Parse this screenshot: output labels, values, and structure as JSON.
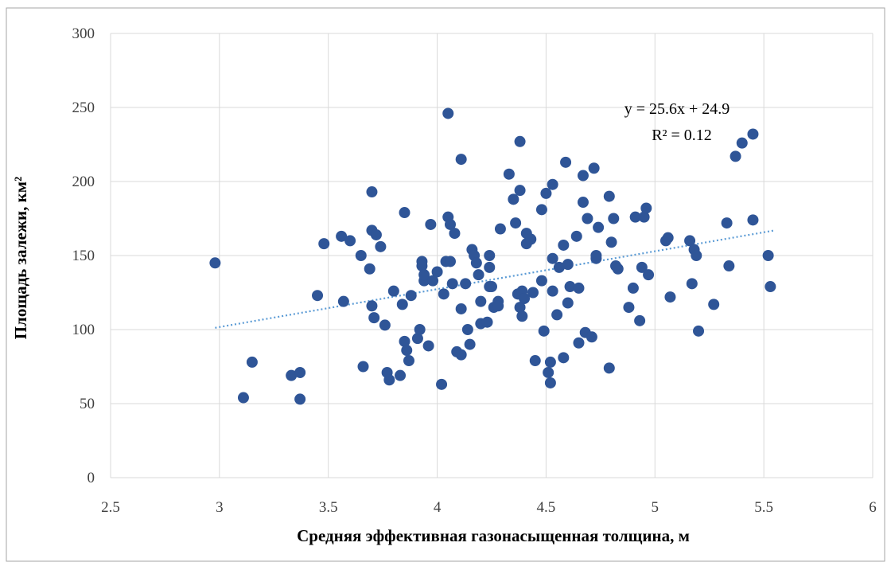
{
  "chart_data": {
    "type": "scatter",
    "title": "",
    "xlabel": "Средняя эффективная газонасыщенная толщина, м",
    "ylabel": "Площадь залежи, км²",
    "xlim": [
      2.5,
      6
    ],
    "ylim": [
      0,
      300
    ],
    "x_ticks": [
      "2.5",
      "3",
      "3.5",
      "4",
      "4.5",
      "5",
      "5.5",
      "6"
    ],
    "y_ticks": [
      "0",
      "50",
      "100",
      "150",
      "200",
      "250",
      "300"
    ],
    "grid": true,
    "legend": "none",
    "colors": {
      "marker": "#2F5597",
      "trendline": "#5B9BD5",
      "grid": "#D9D9D9",
      "frame": "#A6A6A6"
    },
    "annotations": {
      "equation": "y = 25.6x + 24.9",
      "r_squared": "R² = 0.12"
    },
    "trendline": {
      "slope": 25.6,
      "intercept": 24.9,
      "x_range": [
        2.98,
        5.55
      ]
    },
    "points": [
      {
        "x": 2.98,
        "y": 145
      },
      {
        "x": 3.11,
        "y": 54
      },
      {
        "x": 3.15,
        "y": 78
      },
      {
        "x": 3.33,
        "y": 69
      },
      {
        "x": 3.37,
        "y": 71
      },
      {
        "x": 3.37,
        "y": 53
      },
      {
        "x": 3.45,
        "y": 123
      },
      {
        "x": 3.48,
        "y": 158
      },
      {
        "x": 3.56,
        "y": 163
      },
      {
        "x": 3.57,
        "y": 119
      },
      {
        "x": 3.6,
        "y": 160
      },
      {
        "x": 3.65,
        "y": 150
      },
      {
        "x": 3.66,
        "y": 75
      },
      {
        "x": 3.69,
        "y": 141
      },
      {
        "x": 3.7,
        "y": 193
      },
      {
        "x": 3.7,
        "y": 167
      },
      {
        "x": 3.7,
        "y": 116
      },
      {
        "x": 3.71,
        "y": 108
      },
      {
        "x": 3.72,
        "y": 164
      },
      {
        "x": 3.74,
        "y": 156
      },
      {
        "x": 3.76,
        "y": 103
      },
      {
        "x": 3.77,
        "y": 71
      },
      {
        "x": 3.78,
        "y": 66
      },
      {
        "x": 3.8,
        "y": 126
      },
      {
        "x": 3.83,
        "y": 69
      },
      {
        "x": 3.84,
        "y": 117
      },
      {
        "x": 3.85,
        "y": 92
      },
      {
        "x": 3.85,
        "y": 179
      },
      {
        "x": 3.86,
        "y": 86
      },
      {
        "x": 3.87,
        "y": 79
      },
      {
        "x": 3.88,
        "y": 123
      },
      {
        "x": 3.91,
        "y": 94
      },
      {
        "x": 3.92,
        "y": 100
      },
      {
        "x": 3.93,
        "y": 146
      },
      {
        "x": 3.93,
        "y": 143
      },
      {
        "x": 3.94,
        "y": 133
      },
      {
        "x": 3.94,
        "y": 137
      },
      {
        "x": 3.96,
        "y": 89
      },
      {
        "x": 3.97,
        "y": 171
      },
      {
        "x": 3.98,
        "y": 133
      },
      {
        "x": 4.0,
        "y": 139
      },
      {
        "x": 4.02,
        "y": 63
      },
      {
        "x": 4.03,
        "y": 124
      },
      {
        "x": 4.04,
        "y": 146
      },
      {
        "x": 4.05,
        "y": 246
      },
      {
        "x": 4.05,
        "y": 176
      },
      {
        "x": 4.06,
        "y": 171
      },
      {
        "x": 4.06,
        "y": 146
      },
      {
        "x": 4.07,
        "y": 131
      },
      {
        "x": 4.08,
        "y": 165
      },
      {
        "x": 4.09,
        "y": 85
      },
      {
        "x": 4.11,
        "y": 114
      },
      {
        "x": 4.11,
        "y": 83
      },
      {
        "x": 4.11,
        "y": 215
      },
      {
        "x": 4.13,
        "y": 131
      },
      {
        "x": 4.14,
        "y": 100
      },
      {
        "x": 4.15,
        "y": 90
      },
      {
        "x": 4.16,
        "y": 154
      },
      {
        "x": 4.17,
        "y": 150
      },
      {
        "x": 4.18,
        "y": 145
      },
      {
        "x": 4.19,
        "y": 137
      },
      {
        "x": 4.2,
        "y": 119
      },
      {
        "x": 4.2,
        "y": 104
      },
      {
        "x": 4.23,
        "y": 105
      },
      {
        "x": 4.24,
        "y": 150
      },
      {
        "x": 4.24,
        "y": 142
      },
      {
        "x": 4.24,
        "y": 129
      },
      {
        "x": 4.25,
        "y": 129
      },
      {
        "x": 4.26,
        "y": 115
      },
      {
        "x": 4.28,
        "y": 119
      },
      {
        "x": 4.28,
        "y": 116
      },
      {
        "x": 4.29,
        "y": 168
      },
      {
        "x": 4.33,
        "y": 205
      },
      {
        "x": 4.35,
        "y": 188
      },
      {
        "x": 4.36,
        "y": 172
      },
      {
        "x": 4.37,
        "y": 124
      },
      {
        "x": 4.38,
        "y": 194
      },
      {
        "x": 4.38,
        "y": 227
      },
      {
        "x": 4.38,
        "y": 115
      },
      {
        "x": 4.39,
        "y": 109
      },
      {
        "x": 4.39,
        "y": 126
      },
      {
        "x": 4.4,
        "y": 121
      },
      {
        "x": 4.41,
        "y": 158
      },
      {
        "x": 4.41,
        "y": 165
      },
      {
        "x": 4.43,
        "y": 161
      },
      {
        "x": 4.44,
        "y": 125
      },
      {
        "x": 4.45,
        "y": 79
      },
      {
        "x": 4.48,
        "y": 181
      },
      {
        "x": 4.48,
        "y": 133
      },
      {
        "x": 4.49,
        "y": 99
      },
      {
        "x": 4.5,
        "y": 192
      },
      {
        "x": 4.51,
        "y": 71
      },
      {
        "x": 4.52,
        "y": 78
      },
      {
        "x": 4.52,
        "y": 64
      },
      {
        "x": 4.53,
        "y": 198
      },
      {
        "x": 4.53,
        "y": 148
      },
      {
        "x": 4.53,
        "y": 126
      },
      {
        "x": 4.55,
        "y": 110
      },
      {
        "x": 4.56,
        "y": 142
      },
      {
        "x": 4.58,
        "y": 157
      },
      {
        "x": 4.58,
        "y": 81
      },
      {
        "x": 4.59,
        "y": 213
      },
      {
        "x": 4.6,
        "y": 144
      },
      {
        "x": 4.6,
        "y": 118
      },
      {
        "x": 4.61,
        "y": 129
      },
      {
        "x": 4.64,
        "y": 163
      },
      {
        "x": 4.65,
        "y": 128
      },
      {
        "x": 4.65,
        "y": 91
      },
      {
        "x": 4.67,
        "y": 204
      },
      {
        "x": 4.67,
        "y": 186
      },
      {
        "x": 4.68,
        "y": 98
      },
      {
        "x": 4.69,
        "y": 175
      },
      {
        "x": 4.71,
        "y": 95
      },
      {
        "x": 4.72,
        "y": 209
      },
      {
        "x": 4.73,
        "y": 148
      },
      {
        "x": 4.73,
        "y": 150
      },
      {
        "x": 4.74,
        "y": 169
      },
      {
        "x": 4.79,
        "y": 190
      },
      {
        "x": 4.79,
        "y": 74
      },
      {
        "x": 4.8,
        "y": 159
      },
      {
        "x": 4.81,
        "y": 175
      },
      {
        "x": 4.82,
        "y": 143
      },
      {
        "x": 4.83,
        "y": 141
      },
      {
        "x": 4.88,
        "y": 115
      },
      {
        "x": 4.9,
        "y": 128
      },
      {
        "x": 4.91,
        "y": 176
      },
      {
        "x": 4.93,
        "y": 106
      },
      {
        "x": 4.94,
        "y": 142
      },
      {
        "x": 4.95,
        "y": 176
      },
      {
        "x": 4.96,
        "y": 182
      },
      {
        "x": 4.97,
        "y": 137
      },
      {
        "x": 5.05,
        "y": 160
      },
      {
        "x": 5.06,
        "y": 162
      },
      {
        "x": 5.07,
        "y": 122
      },
      {
        "x": 5.16,
        "y": 160
      },
      {
        "x": 5.17,
        "y": 131
      },
      {
        "x": 5.18,
        "y": 154
      },
      {
        "x": 5.19,
        "y": 150
      },
      {
        "x": 5.2,
        "y": 99
      },
      {
        "x": 5.27,
        "y": 117
      },
      {
        "x": 5.33,
        "y": 172
      },
      {
        "x": 5.34,
        "y": 143
      },
      {
        "x": 5.37,
        "y": 217
      },
      {
        "x": 5.4,
        "y": 226
      },
      {
        "x": 5.45,
        "y": 232
      },
      {
        "x": 5.45,
        "y": 174
      },
      {
        "x": 5.52,
        "y": 150
      },
      {
        "x": 5.53,
        "y": 129
      }
    ]
  }
}
